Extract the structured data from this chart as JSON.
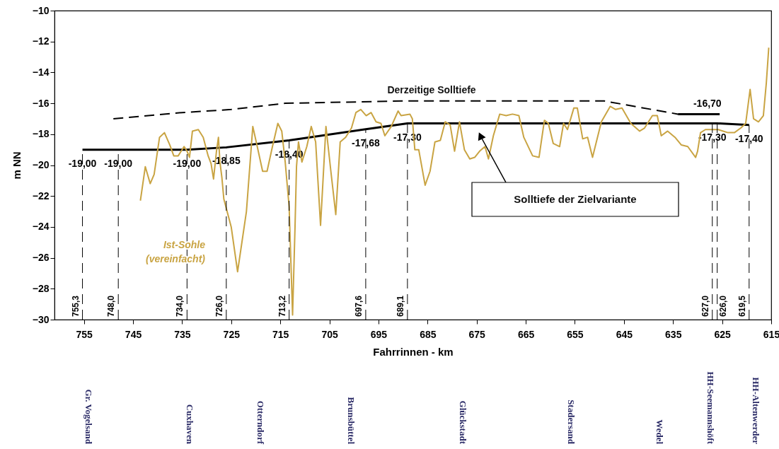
{
  "chart_data": {
    "type": "line",
    "xlabel": "Fahrrinnen - km",
    "ylabel": "m NN",
    "xlim": [
      761,
      615
    ],
    "xticks": [
      755,
      745,
      735,
      725,
      715,
      705,
      695,
      685,
      675,
      665,
      655,
      645,
      635,
      625,
      615
    ],
    "ylim": [
      -30,
      -10
    ],
    "yticks": [
      -10,
      -12,
      -14,
      -16,
      -18,
      -20,
      -22,
      -24,
      -26,
      -28,
      -30
    ],
    "grid": false,
    "series": [
      {
        "name": "Derzeitige Solltiefe",
        "color": "#000000",
        "line_style": "dashed",
        "x": [
          749,
          735,
          725,
          714,
          690,
          649,
          634
        ],
        "values": [
          -17.0,
          -16.6,
          -16.4,
          -16.0,
          -15.85,
          -15.85,
          -16.7
        ]
      },
      {
        "name": "Solltiefe der Zielvariante",
        "color": "#000000",
        "line_style": "solid",
        "x": [
          755.3,
          748.0,
          734.0,
          726.0,
          713.2,
          697.6,
          689.1,
          627.0,
          626.0,
          619.5
        ],
        "values": [
          -19.0,
          -19.0,
          -19.0,
          -18.85,
          -18.4,
          -17.68,
          -17.3,
          -17.3,
          -17.3,
          -17.4
        ],
        "value_labels": [
          "-19,00",
          "-19,00",
          "-19,00",
          "-18,85",
          "-18,40",
          "-17,68",
          "-17,30",
          "-17,30",
          null,
          "-17,40"
        ]
      },
      {
        "color": "#000000",
        "line_style": "solid",
        "x": [
          634,
          628,
          625.5
        ],
        "values": [
          -16.7,
          -16.7,
          -16.7
        ],
        "value_labels": [
          null,
          "-16,70",
          null
        ]
      },
      {
        "name": "Ist-Sohle\n(vereinfacht)",
        "color": "#c9a443",
        "line_style": "solid",
        "x": [
          743.5,
          742.5,
          741.5,
          740.7,
          739.6,
          738.6,
          737.5,
          736.7,
          735.8,
          734.6,
          734.0,
          733.5,
          732.9,
          731.7,
          730.7,
          729.7,
          729.1,
          728.6,
          728.0,
          727.6,
          727.3,
          726.9,
          726.5,
          725.0,
          723.7,
          721.9,
          720.6,
          719.9,
          718.6,
          717.7,
          716.6,
          715.5,
          714.7,
          714.0,
          713.2,
          712.5,
          712.0,
          711.7,
          711.3,
          710.6,
          709.6,
          708.7,
          707.8,
          706.8,
          705.7,
          704.7,
          703.7,
          702.8,
          701.7,
          700.5,
          699.6,
          698.6,
          697.5,
          696.5,
          695.5,
          694.5,
          693.7,
          692.4,
          691.0,
          690.4,
          688.6,
          688.1,
          687.6,
          686.8,
          685.5,
          684.5,
          683.5,
          682.4,
          681.4,
          680.4,
          679.5,
          678.5,
          677.5,
          676.4,
          675.4,
          674.4,
          673.3,
          672.6,
          671.6,
          670.3,
          669.0,
          667.7,
          666.4,
          665.4,
          663.6,
          662.3,
          661.2,
          660.4,
          659.4,
          658.1,
          657.3,
          656.5,
          655.2,
          654.5,
          653.4,
          652.4,
          651.4,
          649.6,
          647.8,
          646.7,
          645.4,
          643.6,
          641.8,
          640.8,
          639.2,
          638.2,
          637.4,
          636.1,
          634.6,
          633.3,
          632.0,
          630.4,
          630.0,
          629.4,
          628.4,
          627.1,
          625.8,
          624.8,
          623.8,
          622.5,
          621.2,
          620.2,
          619.3,
          618.6,
          617.6,
          616.6,
          616.0,
          615.5
        ],
        "values": [
          -22.3,
          -20.1,
          -21.2,
          -20.6,
          -18.2,
          -17.9,
          -18.7,
          -19.4,
          -19.4,
          -18.8,
          -19.1,
          -19.5,
          -17.8,
          -17.7,
          -18.2,
          -19.4,
          -19.9,
          -20.9,
          -19.1,
          -18.2,
          -19.8,
          -20.8,
          -22.2,
          -24.0,
          -26.9,
          -23.0,
          -17.5,
          -18.5,
          -20.4,
          -20.4,
          -18.8,
          -17.3,
          -17.8,
          -19.8,
          -22.7,
          -29.7,
          -24.0,
          -20.1,
          -18.5,
          -19.8,
          -18.8,
          -17.5,
          -18.5,
          -23.9,
          -17.5,
          -20.4,
          -23.2,
          -18.5,
          -18.2,
          -17.6,
          -16.6,
          -16.4,
          -16.8,
          -16.6,
          -17.2,
          -17.3,
          -18.1,
          -17.5,
          -16.5,
          -16.8,
          -16.7,
          -17.0,
          -19.0,
          -19.0,
          -21.3,
          -20.4,
          -18.5,
          -18.4,
          -17.2,
          -17.4,
          -19.1,
          -17.2,
          -19.0,
          -19.6,
          -19.5,
          -19.1,
          -18.8,
          -19.6,
          -18.1,
          -16.7,
          -16.8,
          -16.7,
          -16.8,
          -18.2,
          -19.4,
          -19.5,
          -17.1,
          -17.3,
          -18.6,
          -18.8,
          -17.3,
          -17.7,
          -16.3,
          -16.3,
          -18.3,
          -18.2,
          -19.5,
          -17.2,
          -16.2,
          -16.4,
          -16.3,
          -17.3,
          -17.8,
          -17.6,
          -16.8,
          -16.8,
          -18.1,
          -17.8,
          -18.2,
          -18.7,
          -18.8,
          -19.5,
          -19.1,
          -17.9,
          -17.7,
          -17.7,
          -17.7,
          -17.8,
          -17.9,
          -17.9,
          -17.6,
          -17.3,
          -15.1,
          -17.0,
          -17.2,
          -16.8,
          -14.7,
          -12.4
        ]
      }
    ],
    "ref_lines": [
      {
        "axis": "x",
        "value": 755.3,
        "label": "755,3",
        "line_style": "dashed"
      },
      {
        "axis": "x",
        "value": 748.0,
        "label": "748,0",
        "line_style": "dashed"
      },
      {
        "axis": "x",
        "value": 734.0,
        "label": "734,0",
        "line_style": "dashed"
      },
      {
        "axis": "x",
        "value": 726.0,
        "label": "726,0",
        "line_style": "dashed"
      },
      {
        "axis": "x",
        "value": 713.2,
        "label": "713,2",
        "line_style": "dashed"
      },
      {
        "axis": "x",
        "value": 697.6,
        "label": "697,6",
        "line_style": "dashed"
      },
      {
        "axis": "x",
        "value": 689.1,
        "label": "689,1",
        "line_style": "dashed"
      },
      {
        "axis": "x",
        "value": 627.0,
        "label": "627,0",
        "line_style": "dashed"
      },
      {
        "axis": "x",
        "value": 626.0,
        "label": "626,0",
        "line_style": "dashed"
      },
      {
        "axis": "x",
        "value": 619.5,
        "label": "619,5",
        "line_style": "dashed"
      }
    ],
    "annotations": [
      "Gr. Vogelsand",
      "Cuxhaven",
      "Otterndorf",
      "Brunsbüttel",
      "Glückstadt",
      "Stadersand",
      "Wedel",
      "HH-Seemannshöft",
      "HH-Altenwerder"
    ]
  }
}
